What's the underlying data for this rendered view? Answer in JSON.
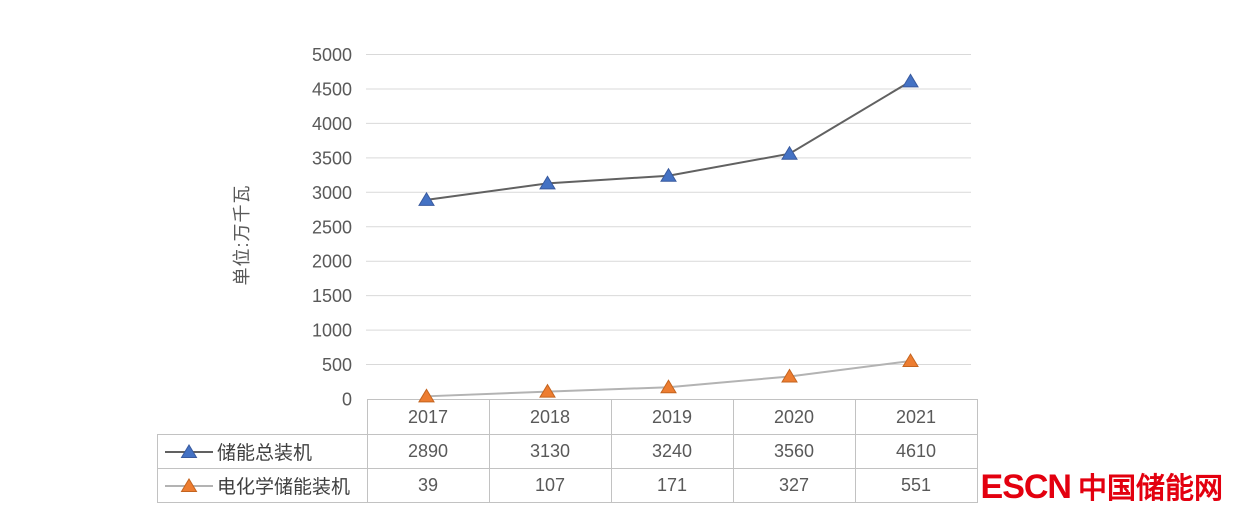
{
  "chart_data": {
    "type": "line",
    "ylabel": "单位:万千瓦",
    "categories": [
      "2017",
      "2018",
      "2019",
      "2020",
      "2021"
    ],
    "series": [
      {
        "name": "储能总装机",
        "values": [
          2890,
          3130,
          3240,
          3560,
          4610
        ],
        "line_color": "#616161",
        "marker": "triangle",
        "marker_color": "#4472c4",
        "marker_edge": "#395a9e"
      },
      {
        "name": "电化学储能装机",
        "values": [
          39,
          107,
          171,
          327,
          551
        ],
        "line_color": "#b3b3b3",
        "marker": "triangle",
        "marker_color": "#ed7d31",
        "marker_edge": "#c4641f"
      }
    ],
    "ylim": [
      0,
      5000
    ],
    "yticks": [
      0,
      500,
      1000,
      1500,
      2000,
      2500,
      3000,
      3500,
      4000,
      4500,
      5000
    ],
    "grid": true,
    "legend_position": "data-table-left",
    "data_table_shown": true,
    "colors": {
      "gridline": "#d9d9d9",
      "axis_text": "#595959",
      "table_border": "#c2c2c2",
      "background": "#ffffff"
    }
  },
  "branding": {
    "logo_text_en": "ESCN",
    "logo_text_zh": "中国储能网",
    "logo_color": "#e3000f"
  }
}
